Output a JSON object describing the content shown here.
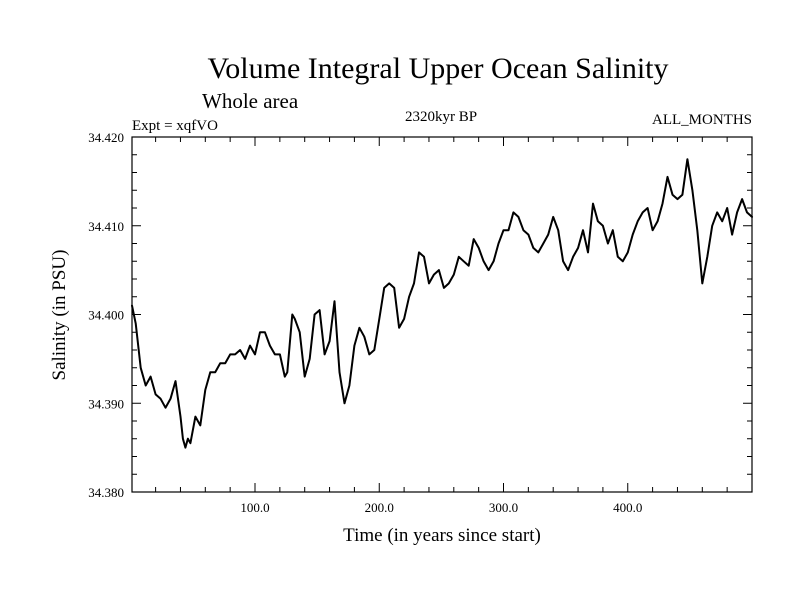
{
  "chart_data": {
    "type": "line",
    "title": "Volume Integral Upper Ocean Salinity",
    "subtitle": "Whole area",
    "left_note": "Expt = xqfVO",
    "center_note": "2320kyr BP",
    "right_note": "ALL_MONTHS",
    "xlabel": "Time (in years since start)",
    "ylabel": "Salinity (in PSU)",
    "xlim": [
      1,
      500
    ],
    "ylim": [
      34.38,
      34.42
    ],
    "xticks": [
      100,
      200,
      300,
      400
    ],
    "xtick_labels": [
      "100.0",
      "200.0",
      "300.0",
      "400.0"
    ],
    "yticks": [
      34.38,
      34.39,
      34.4,
      34.41,
      34.42
    ],
    "ytick_labels": [
      "34.380",
      "34.390",
      "34.400",
      "34.410",
      "34.420"
    ],
    "series": [
      {
        "name": "Salinity",
        "color": "#000000",
        "x": [
          1,
          4,
          8,
          12,
          16,
          20,
          24,
          28,
          32,
          36,
          40,
          42,
          44,
          46,
          48,
          52,
          56,
          60,
          64,
          68,
          72,
          76,
          80,
          84,
          88,
          92,
          96,
          100,
          104,
          108,
          112,
          116,
          120,
          124,
          126,
          130,
          132,
          136,
          140,
          144,
          148,
          152,
          156,
          160,
          164,
          168,
          172,
          176,
          180,
          184,
          188,
          192,
          196,
          200,
          204,
          208,
          212,
          216,
          220,
          224,
          228,
          232,
          236,
          240,
          244,
          248,
          252,
          256,
          260,
          264,
          268,
          272,
          276,
          280,
          284,
          288,
          292,
          296,
          300,
          304,
          308,
          312,
          316,
          320,
          324,
          328,
          332,
          336,
          340,
          344,
          348,
          352,
          356,
          360,
          364,
          368,
          372,
          376,
          380,
          384,
          388,
          392,
          396,
          400,
          404,
          408,
          412,
          416,
          420,
          424,
          428,
          432,
          436,
          440,
          444,
          448,
          452,
          456,
          460,
          464,
          468,
          472,
          476,
          480,
          484,
          488,
          492,
          496,
          500
        ],
        "y": [
          34.401,
          34.399,
          34.394,
          34.392,
          34.393,
          34.391,
          34.3905,
          34.3895,
          34.3905,
          34.3925,
          34.3885,
          34.386,
          34.385,
          34.386,
          34.3855,
          34.3885,
          34.3875,
          34.3915,
          34.3935,
          34.3935,
          34.3945,
          34.3945,
          34.3955,
          34.3955,
          34.396,
          34.395,
          34.3965,
          34.3955,
          34.398,
          34.398,
          34.3965,
          34.3955,
          34.3955,
          34.393,
          34.3935,
          34.4,
          34.3995,
          34.398,
          34.393,
          34.395,
          34.4,
          34.4005,
          34.3955,
          34.397,
          34.4015,
          34.3935,
          34.39,
          34.392,
          34.3965,
          34.3985,
          34.3975,
          34.3955,
          34.396,
          34.3995,
          34.403,
          34.4035,
          34.403,
          34.3985,
          34.3995,
          34.402,
          34.4035,
          34.407,
          34.4065,
          34.4035,
          34.4045,
          34.405,
          34.403,
          34.4035,
          34.4045,
          34.4065,
          34.406,
          34.4055,
          34.4085,
          34.4075,
          34.406,
          34.405,
          34.406,
          34.408,
          34.4095,
          34.4095,
          34.4115,
          34.411,
          34.4095,
          34.409,
          34.4075,
          34.407,
          34.408,
          34.409,
          34.411,
          34.4095,
          34.406,
          34.405,
          34.4065,
          34.4075,
          34.4095,
          34.407,
          34.4125,
          34.4105,
          34.41,
          34.408,
          34.4095,
          34.4065,
          34.406,
          34.407,
          34.409,
          34.4105,
          34.4115,
          34.412,
          34.4095,
          34.4105,
          34.4125,
          34.4155,
          34.4135,
          34.413,
          34.4135,
          34.4175,
          34.414,
          34.4095,
          34.4035,
          34.4065,
          34.41,
          34.4115,
          34.4105,
          34.412,
          34.409,
          34.4115,
          34.413,
          34.4115,
          34.411
        ]
      }
    ]
  }
}
